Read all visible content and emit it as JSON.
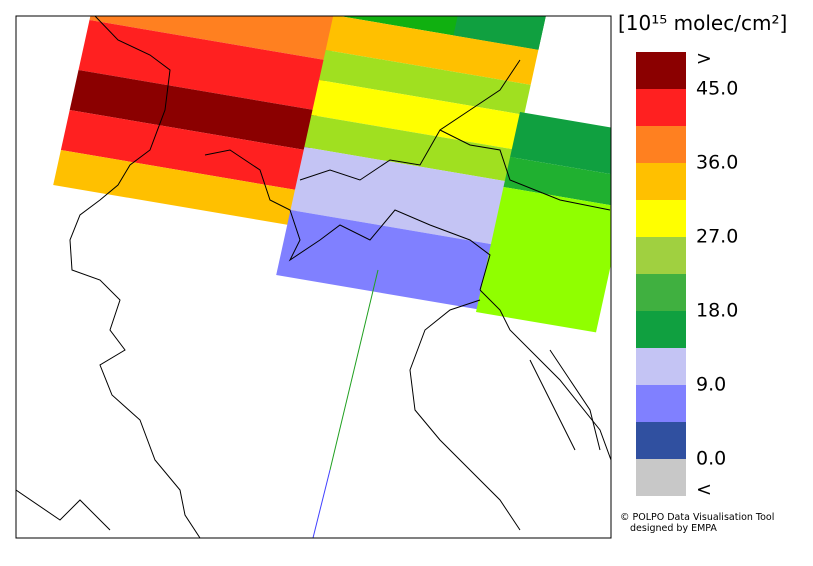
{
  "legend": {
    "title": "[10¹⁵ molec/cm²]",
    "labels": [
      ">",
      "45.0",
      "36.0",
      "27.0",
      "18.0",
      "9.0",
      "0.0",
      "<"
    ],
    "colors": [
      "#8b0000",
      "#ff2020",
      "#ff8020",
      "#ffc000",
      "#ffff00",
      "#a0d040",
      "#40b040",
      "#10a040",
      "#c4c4f4",
      "#8080ff",
      "#3050a0",
      "#c8c8c8"
    ]
  },
  "credit": [
    "© POLPO Data Visualisation Tool",
    "designed by EMPA"
  ]
}
